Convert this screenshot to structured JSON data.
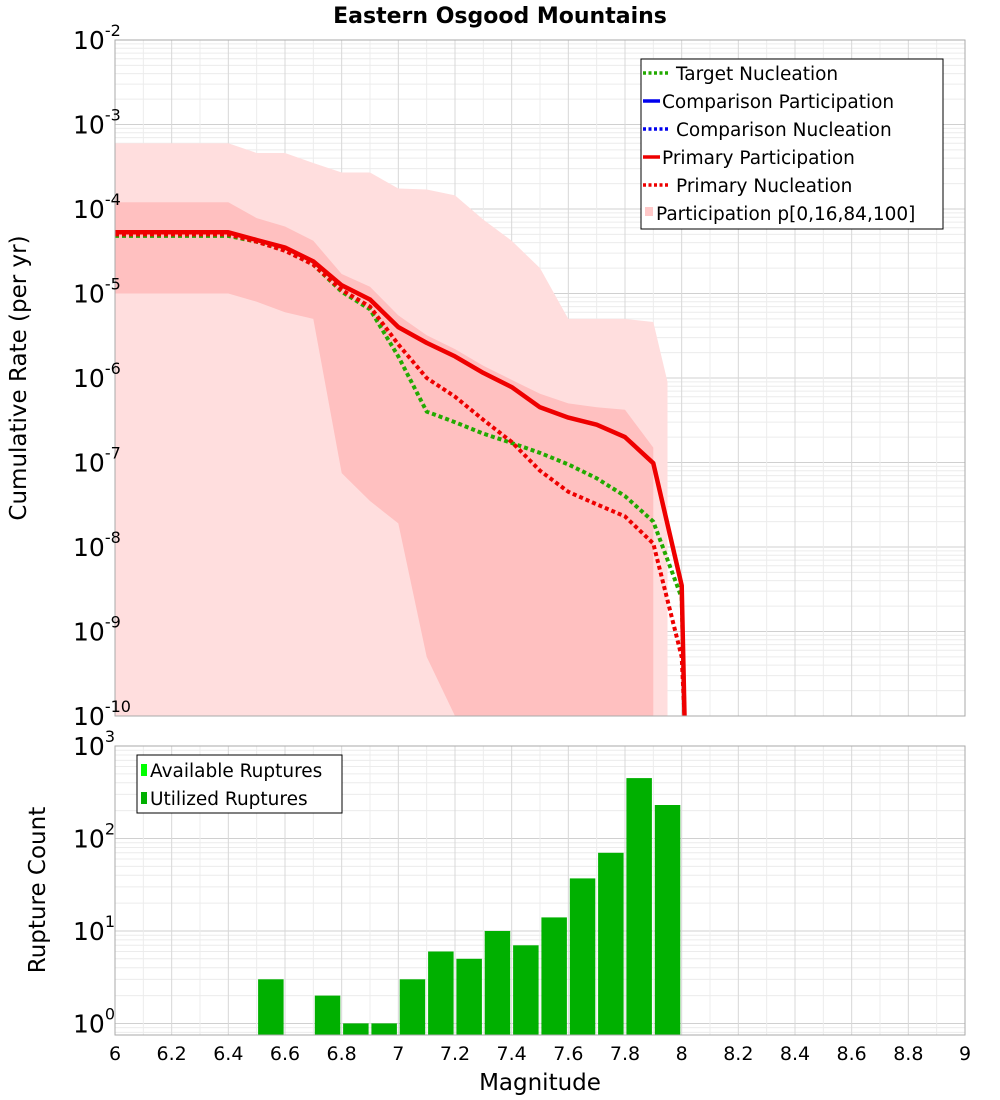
{
  "chart_data": [
    {
      "type": "line",
      "title": "Eastern Osgood Mountains",
      "xlabel": "",
      "ylabel": "Cumulative Rate (per yr)",
      "yscale": "log",
      "xlim": [
        6,
        9
      ],
      "ylim": [
        1e-10,
        0.01
      ],
      "ytick_exponents": [
        -10,
        -9,
        -8,
        -7,
        -6,
        -5,
        -4,
        -3,
        -2
      ],
      "grid": true,
      "legend_position": "top-right",
      "legend": [
        {
          "label": "Target Nucleation",
          "color": "#22aa00",
          "style": "dotted"
        },
        {
          "label": "Comparison Participation",
          "color": "#0000ee",
          "style": "solid"
        },
        {
          "label": "Comparison Nucleation",
          "color": "#0000ee",
          "style": "dotted"
        },
        {
          "label": "Primary Participation",
          "color": "#ee0000",
          "style": "solid"
        },
        {
          "label": "Primary Nucleation",
          "color": "#ee0000",
          "style": "dotted"
        },
        {
          "label": "Participation p[0,16,84,100]",
          "color": "#ffc8c8",
          "style": "fill"
        }
      ],
      "series": [
        {
          "name": "Target Nucleation",
          "color": "#22aa00",
          "style": "dotted",
          "x": [
            6.0,
            6.1,
            6.2,
            6.3,
            6.4,
            6.5,
            6.6,
            6.7,
            6.8,
            6.9,
            7.0,
            7.1,
            7.2,
            7.3,
            7.4,
            7.5,
            7.6,
            7.7,
            7.8,
            7.9,
            8.0,
            8.01
          ],
          "y": [
            4.8e-05,
            4.8e-05,
            4.8e-05,
            4.8e-05,
            4.8e-05,
            4.1e-05,
            3.3e-05,
            2.2e-05,
            1.05e-05,
            6.5e-06,
            1.8e-06,
            4e-07,
            3e-07,
            2.2e-07,
            1.7e-07,
            1.3e-07,
            9.5e-08,
            6.5e-08,
            4e-08,
            2e-08,
            2.5e-09,
            1e-10
          ]
        },
        {
          "name": "Primary Participation",
          "color": "#ee0000",
          "style": "solid",
          "x": [
            6.0,
            6.1,
            6.2,
            6.3,
            6.4,
            6.5,
            6.6,
            6.7,
            6.8,
            6.9,
            7.0,
            7.1,
            7.2,
            7.3,
            7.4,
            7.5,
            7.6,
            7.7,
            7.8,
            7.9,
            8.0,
            8.01
          ],
          "y": [
            5.3e-05,
            5.3e-05,
            5.3e-05,
            5.3e-05,
            5.3e-05,
            4.3e-05,
            3.5e-05,
            2.4e-05,
            1.25e-05,
            8.5e-06,
            4e-06,
            2.6e-06,
            1.8e-06,
            1.15e-06,
            7.8e-07,
            4.5e-07,
            3.4e-07,
            2.8e-07,
            2e-07,
            9.8e-08,
            3.5e-09,
            1e-10
          ]
        },
        {
          "name": "Primary Nucleation",
          "color": "#ee0000",
          "style": "dotted",
          "x": [
            6.0,
            6.1,
            6.2,
            6.3,
            6.4,
            6.5,
            6.6,
            6.7,
            6.8,
            6.9,
            7.0,
            7.1,
            7.2,
            7.3,
            7.4,
            7.5,
            7.6,
            7.7,
            7.8,
            7.9,
            8.0,
            8.01
          ],
          "y": [
            5e-05,
            5e-05,
            5e-05,
            5e-05,
            5e-05,
            4.1e-05,
            3.2e-05,
            2.2e-05,
            1.1e-05,
            7e-06,
            2.5e-06,
            1e-06,
            6e-07,
            3.2e-07,
            1.75e-07,
            8e-08,
            4.5e-08,
            3.2e-08,
            2.3e-08,
            1.1e-08,
            5e-10,
            1e-10
          ]
        }
      ],
      "bands": [
        {
          "name": "p0-p100",
          "color": "#ffdede",
          "x": [
            6.0,
            6.1,
            6.2,
            6.3,
            6.4,
            6.5,
            6.6,
            6.7,
            6.8,
            6.9,
            7.0,
            7.1,
            7.2,
            7.3,
            7.4,
            7.5,
            7.6,
            7.7,
            7.8,
            7.9,
            7.95
          ],
          "upper": [
            0.0006,
            0.0006,
            0.0006,
            0.0006,
            0.0006,
            0.00046,
            0.00046,
            0.00035,
            0.00027,
            0.00027,
            0.000175,
            0.00017,
            0.000145,
            7.5e-05,
            4.2e-05,
            2e-05,
            5e-06,
            5e-06,
            5e-06,
            4.6e-06,
            9e-07
          ],
          "lower": [
            1e-10,
            1e-10,
            1e-10,
            1e-10,
            1e-10,
            1e-10,
            1e-10,
            1e-10,
            1e-10,
            1e-10,
            1e-10,
            1e-10,
            1e-10,
            1e-10,
            1e-10,
            1e-10,
            1e-10,
            1e-10,
            1e-10,
            1e-10,
            1e-10
          ]
        },
        {
          "name": "p16-p84",
          "color": "#ffc0c0",
          "x": [
            6.0,
            6.1,
            6.2,
            6.3,
            6.4,
            6.5,
            6.6,
            6.7,
            6.8,
            6.9,
            7.0,
            7.1,
            7.2,
            7.3,
            7.4,
            7.5,
            7.6,
            7.7,
            7.8,
            7.9
          ],
          "upper": [
            0.00012,
            0.00012,
            0.00012,
            0.00012,
            0.00012,
            7.8e-05,
            6.2e-05,
            4.2e-05,
            1.7e-05,
            1.2e-05,
            5.5e-06,
            3.2e-06,
            2.2e-06,
            1.4e-06,
            9.5e-07,
            6.5e-07,
            5e-07,
            4.5e-07,
            4.2e-07,
            1.5e-07
          ],
          "lower": [
            1e-05,
            1e-05,
            1e-05,
            1e-05,
            1e-05,
            8e-06,
            6e-06,
            5e-06,
            7.5e-08,
            3.5e-08,
            1.9e-08,
            5e-10,
            1e-10,
            1e-10,
            1e-10,
            1e-10,
            1e-10,
            1e-10,
            1e-10,
            1e-10
          ]
        }
      ]
    },
    {
      "type": "bar",
      "xlabel": "Magnitude",
      "ylabel": "Rupture Count",
      "yscale": "log",
      "xlim": [
        6,
        9
      ],
      "ylim": [
        0.75,
        1000
      ],
      "ytick_exponents": [
        0,
        1,
        2,
        3
      ],
      "xticks": [
        "6",
        "6.2",
        "6.4",
        "6.6",
        "6.8",
        "7",
        "7.2",
        "7.4",
        "7.6",
        "7.8",
        "8",
        "8.2",
        "8.4",
        "8.6",
        "8.8",
        "9"
      ],
      "grid": true,
      "legend_position": "top-left",
      "legend": [
        {
          "label": "Available Ruptures",
          "color": "#00ff00"
        },
        {
          "label": "Utilized Ruptures",
          "color": "#00b000"
        }
      ],
      "bar_width": 0.09,
      "x": [
        6.55,
        6.75,
        6.85,
        6.95,
        7.05,
        7.15,
        7.25,
        7.35,
        7.45,
        7.55,
        7.65,
        7.75,
        7.85,
        7.95
      ],
      "values": [
        3,
        2,
        1,
        1,
        3,
        6,
        5,
        10,
        7,
        14,
        37,
        70,
        450,
        230
      ]
    }
  ]
}
